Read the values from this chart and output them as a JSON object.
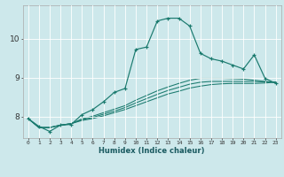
{
  "xlabel": "Humidex (Indice chaleur)",
  "bg_color": "#cde8eb",
  "line_color": "#1a7a6e",
  "grid_color": "#f5f5f5",
  "x_ticks": [
    0,
    1,
    2,
    3,
    4,
    5,
    6,
    7,
    8,
    9,
    10,
    11,
    12,
    13,
    14,
    15,
    16,
    17,
    18,
    19,
    20,
    21,
    22,
    23
  ],
  "y_ticks": [
    8,
    9,
    10
  ],
  "ylim": [
    7.45,
    10.85
  ],
  "xlim": [
    -0.5,
    23.5
  ],
  "line1_x": [
    0,
    1,
    2,
    3,
    4,
    5,
    6,
    7,
    8,
    9,
    10,
    11,
    12,
    13,
    14,
    15,
    16,
    17,
    18,
    19,
    20,
    21,
    22,
    23
  ],
  "line1_y": [
    7.95,
    7.75,
    7.62,
    7.78,
    7.8,
    8.05,
    8.18,
    8.38,
    8.62,
    8.72,
    9.72,
    9.78,
    10.45,
    10.52,
    10.52,
    10.32,
    9.62,
    9.48,
    9.42,
    9.32,
    9.22,
    9.58,
    8.98,
    8.85
  ],
  "line2_x": [
    0,
    23
  ],
  "line2_y": [
    7.95,
    8.88
  ],
  "line3_x": [
    0,
    23
  ],
  "line3_y": [
    7.95,
    8.88
  ],
  "line4_x": [
    0,
    23
  ],
  "line4_y": [
    7.95,
    8.88
  ],
  "line2_end_y": 8.88,
  "smooth_lines": [
    {
      "x": [
        0,
        1,
        2,
        3,
        4,
        5,
        6,
        7,
        8,
        9,
        10,
        11,
        12,
        13,
        14,
        15,
        16,
        17,
        18,
        19,
        20,
        21,
        22,
        23
      ],
      "y": [
        7.95,
        7.72,
        7.72,
        7.78,
        7.82,
        7.9,
        7.95,
        8.02,
        8.1,
        8.18,
        8.28,
        8.38,
        8.48,
        8.58,
        8.65,
        8.73,
        8.78,
        8.82,
        8.84,
        8.85,
        8.85,
        8.85,
        8.86,
        8.88
      ]
    },
    {
      "x": [
        0,
        1,
        2,
        3,
        4,
        5,
        6,
        7,
        8,
        9,
        10,
        11,
        12,
        13,
        14,
        15,
        16,
        17,
        18,
        19,
        20,
        21,
        22,
        23
      ],
      "y": [
        7.95,
        7.72,
        7.72,
        7.78,
        7.82,
        7.92,
        7.98,
        8.06,
        8.14,
        8.23,
        8.35,
        8.46,
        8.57,
        8.67,
        8.75,
        8.83,
        8.88,
        8.9,
        8.9,
        8.9,
        8.9,
        8.9,
        8.89,
        8.88
      ]
    },
    {
      "x": [
        0,
        1,
        2,
        3,
        4,
        5,
        6,
        7,
        8,
        9,
        10,
        11,
        12,
        13,
        14,
        15,
        16,
        17,
        18,
        19,
        20,
        21,
        22,
        23
      ],
      "y": [
        7.95,
        7.72,
        7.72,
        7.78,
        7.82,
        7.94,
        8.01,
        8.1,
        8.19,
        8.28,
        8.42,
        8.54,
        8.66,
        8.76,
        8.85,
        8.93,
        8.98,
        8.98,
        8.98,
        8.97,
        8.96,
        8.93,
        8.9,
        8.88
      ]
    }
  ]
}
